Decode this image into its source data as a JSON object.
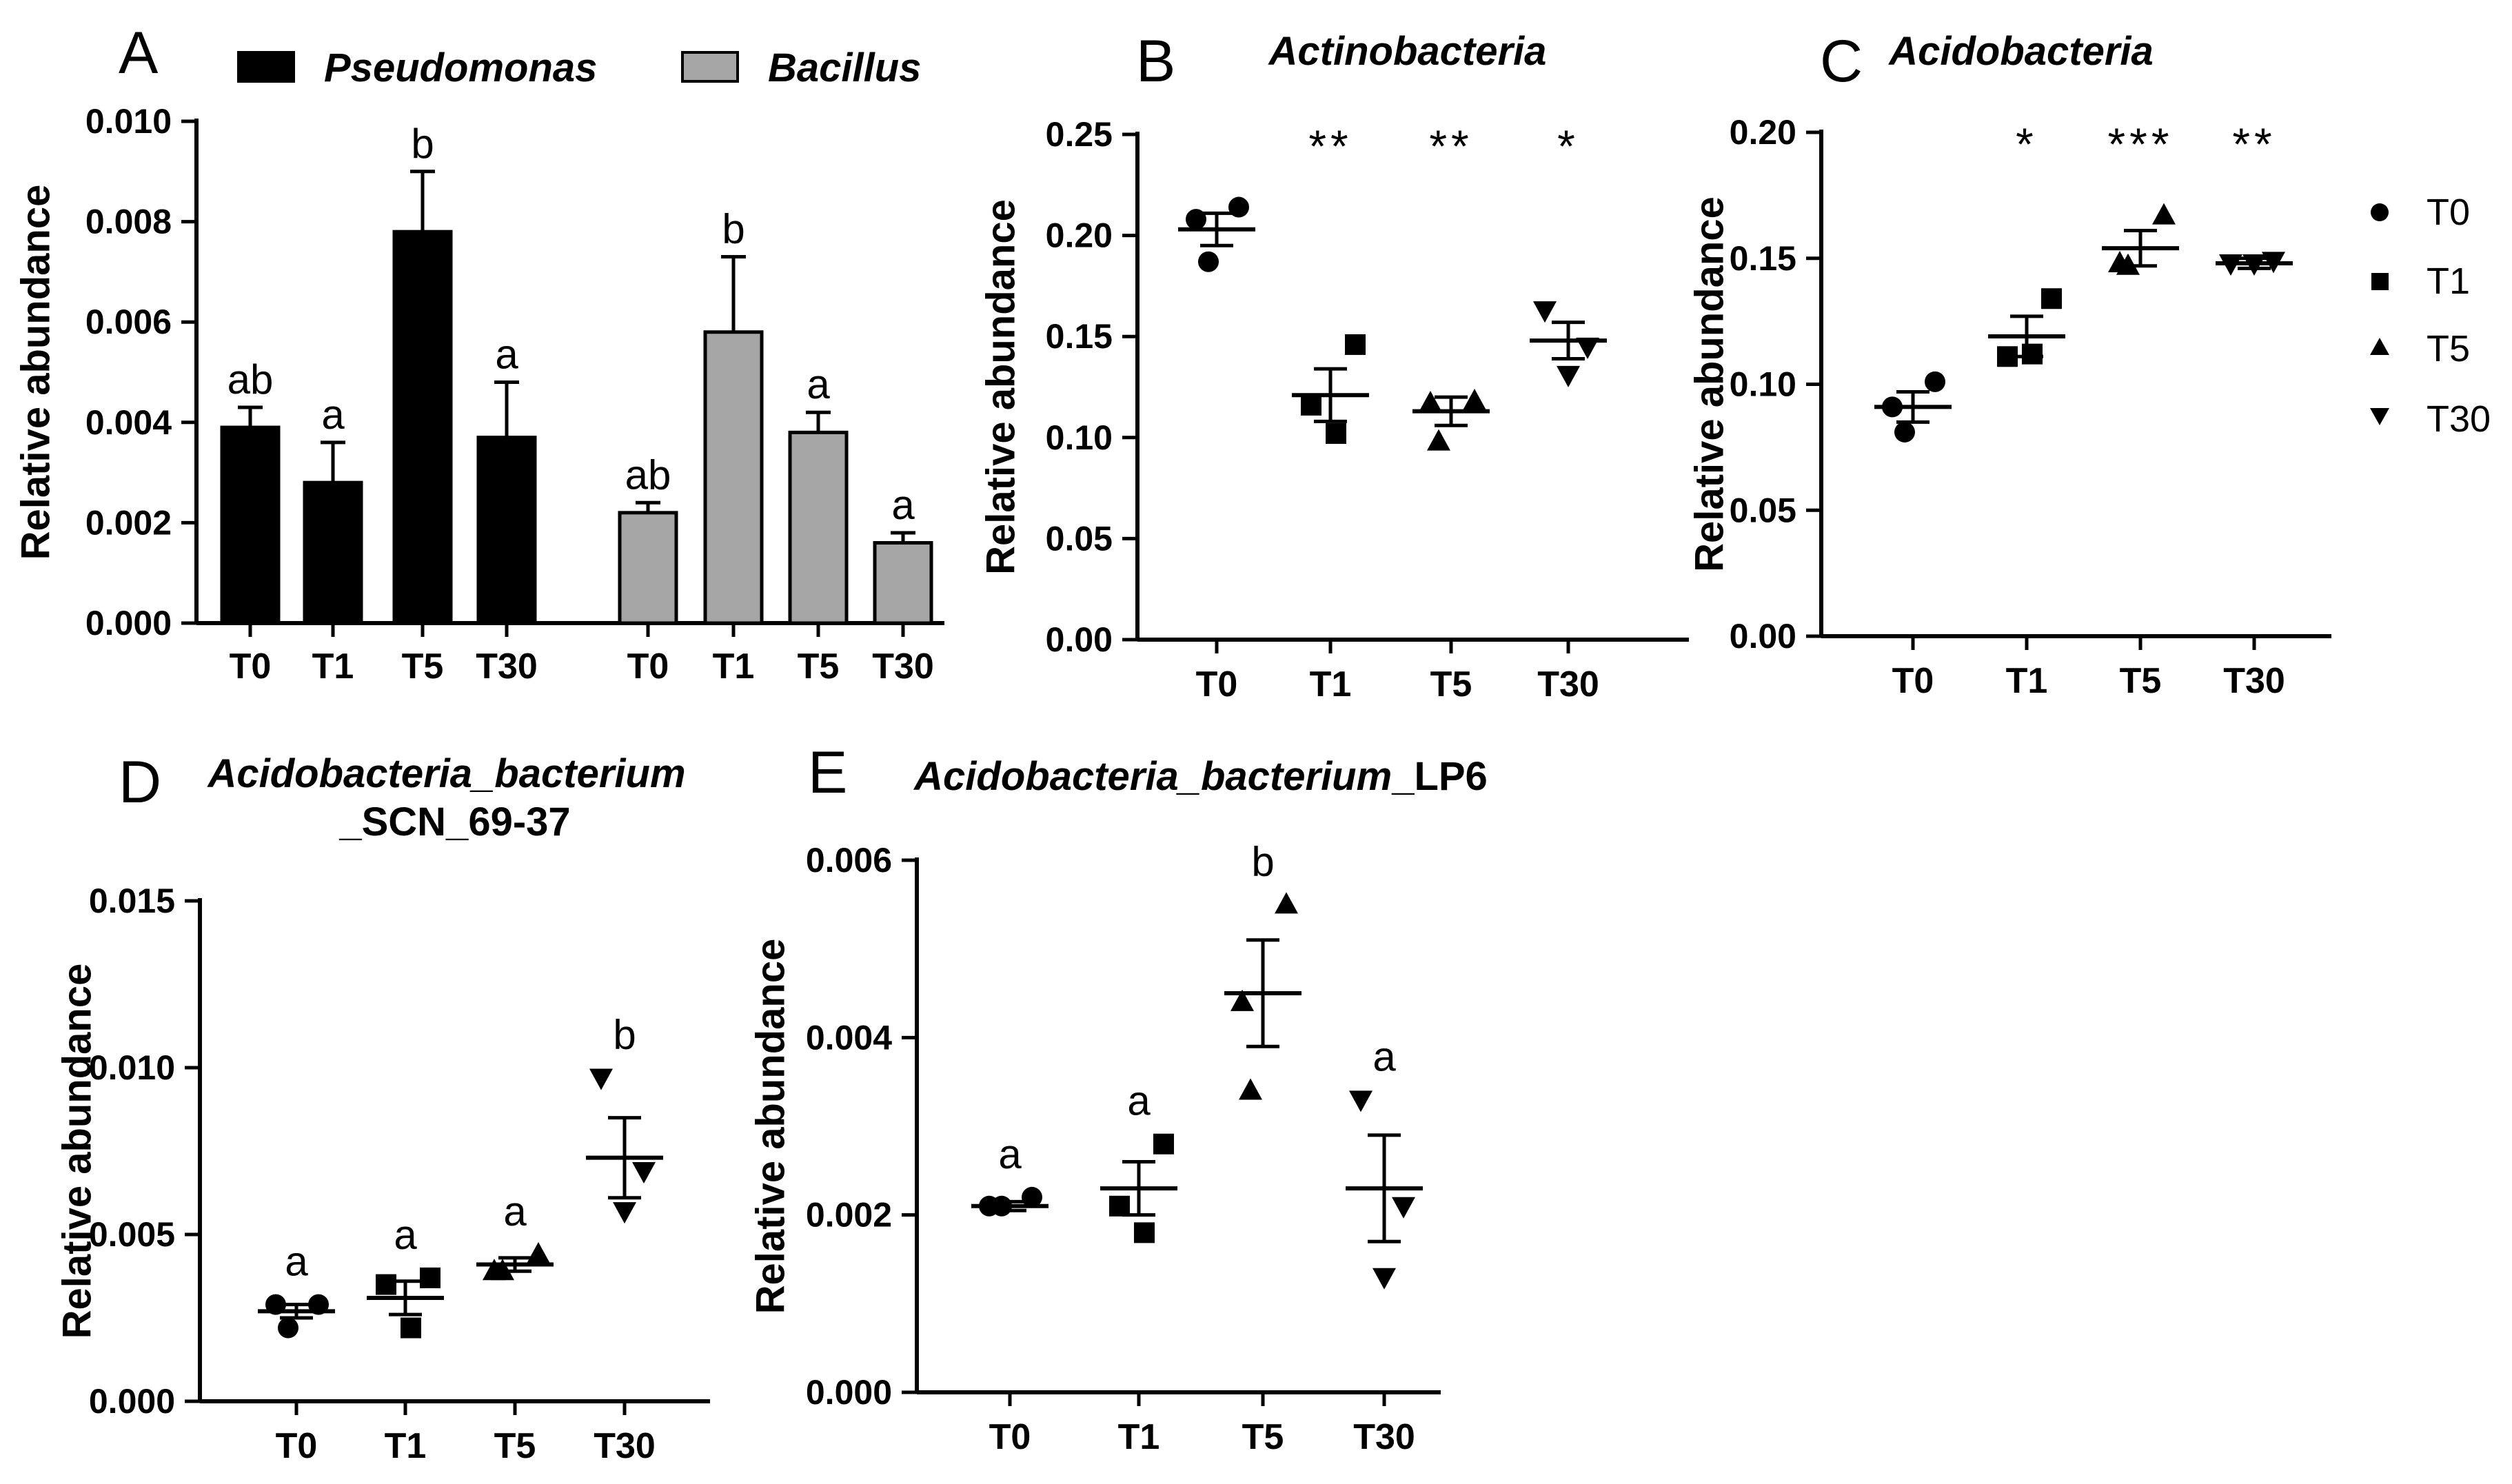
{
  "chart_data": [
    {
      "panel": "A",
      "type": "bar",
      "title": "",
      "ylabel": "Relative abundance",
      "ylim": [
        0,
        0.01
      ],
      "yticks": [
        "0.000",
        "0.002",
        "0.004",
        "0.006",
        "0.008",
        "0.010"
      ],
      "categories": [
        "T0",
        "T1",
        "T5",
        "T30"
      ],
      "legend_position": "top",
      "series": [
        {
          "name": "Pseudomonas",
          "color": "#000000",
          "values": [
            0.0039,
            0.0028,
            0.0078,
            0.0037
          ],
          "errors": [
            0.0004,
            0.0008,
            0.0012,
            0.0011
          ],
          "labels": [
            "ab",
            "a",
            "b",
            "a"
          ]
        },
        {
          "name": "Bacillus",
          "color": "#a6a6a6",
          "values": [
            0.0022,
            0.0058,
            0.0038,
            0.0016
          ],
          "errors": [
            0.0002,
            0.0015,
            0.0004,
            0.0002
          ],
          "labels": [
            "ab",
            "b",
            "a",
            "a"
          ]
        }
      ]
    },
    {
      "panel": "B",
      "type": "scatter",
      "title": "Actinobacteria",
      "ylabel": "Relative abundance",
      "ylim": [
        0,
        0.25
      ],
      "yticks": [
        "0.00",
        "0.05",
        "0.10",
        "0.15",
        "0.20",
        "0.25"
      ],
      "categories": [
        "T0",
        "T1",
        "T5",
        "T30"
      ],
      "groups": [
        {
          "points": [
            0.214,
            0.208,
            0.187
          ],
          "mean": 0.203,
          "sem": 0.008,
          "annotation": ""
        },
        {
          "points": [
            0.146,
            0.116,
            0.102
          ],
          "mean": 0.121,
          "sem": 0.013,
          "annotation": "**"
        },
        {
          "points": [
            0.118,
            0.117,
            0.098
          ],
          "mean": 0.113,
          "sem": 0.007,
          "annotation": "**"
        },
        {
          "points": [
            0.163,
            0.145,
            0.131
          ],
          "mean": 0.148,
          "sem": 0.009,
          "annotation": "*"
        }
      ]
    },
    {
      "panel": "C",
      "type": "scatter",
      "title": "Acidobacteria",
      "ylabel": "Relative abundance",
      "ylim": [
        0,
        0.2
      ],
      "yticks": [
        "0.00",
        "0.05",
        "0.10",
        "0.15",
        "0.20"
      ],
      "categories": [
        "T0",
        "T1",
        "T5",
        "T30"
      ],
      "legend": [
        "T0",
        "T1",
        "T5",
        "T30"
      ],
      "legend_position": "right",
      "groups": [
        {
          "points": [
            0.101,
            0.091,
            0.081
          ],
          "mean": 0.091,
          "sem": 0.006,
          "annotation": ""
        },
        {
          "points": [
            0.134,
            0.111,
            0.112
          ],
          "mean": 0.119,
          "sem": 0.008,
          "annotation": "*"
        },
        {
          "points": [
            0.167,
            0.148,
            0.147
          ],
          "mean": 0.154,
          "sem": 0.007,
          "annotation": "***"
        },
        {
          "points": [
            0.148,
            0.149,
            0.148
          ],
          "mean": 0.148,
          "sem": 0.002,
          "annotation": "**"
        }
      ]
    },
    {
      "panel": "D",
      "type": "scatter",
      "title": "Acidobacteria_bacterium",
      "title_line2": "_SCN_69-37",
      "ylabel": "Relative abundance",
      "ylim": [
        0,
        0.015
      ],
      "yticks": [
        "0.000",
        "0.005",
        "0.010",
        "0.015"
      ],
      "categories": [
        "T0",
        "T1",
        "T5",
        "T30"
      ],
      "groups": [
        {
          "points": [
            0.0029,
            0.0029,
            0.0022
          ],
          "mean": 0.0027,
          "sem": 0.0002,
          "annotation": "a"
        },
        {
          "points": [
            0.0037,
            0.0035,
            0.0022
          ],
          "mean": 0.0031,
          "sem": 0.0005,
          "annotation": "a"
        },
        {
          "points": [
            0.0044,
            0.0039,
            0.0039
          ],
          "mean": 0.0041,
          "sem": 0.0002,
          "annotation": "a"
        },
        {
          "points": [
            0.0097,
            0.0069,
            0.0057
          ],
          "mean": 0.0073,
          "sem": 0.0012,
          "annotation": "b"
        }
      ]
    },
    {
      "panel": "E",
      "type": "scatter",
      "title": "Acidobacteria_bacterium",
      "title_suffix": "_LP6",
      "ylabel": "Relative abundance",
      "ylim": [
        0,
        0.006
      ],
      "yticks": [
        "0.000",
        "0.002",
        "0.004",
        "0.006"
      ],
      "categories": [
        "T0",
        "T1",
        "T5",
        "T30"
      ],
      "groups": [
        {
          "points": [
            0.0022,
            0.0021,
            0.0021
          ],
          "mean": 0.0021,
          "sem": 5e-05,
          "annotation": "a"
        },
        {
          "points": [
            0.0028,
            0.0021,
            0.0018
          ],
          "mean": 0.0023,
          "sem": 0.0003,
          "annotation": "a"
        },
        {
          "points": [
            0.0055,
            0.0044,
            0.0034
          ],
          "mean": 0.0045,
          "sem": 0.0006,
          "annotation": "b"
        },
        {
          "points": [
            0.0033,
            0.0021,
            0.0013
          ],
          "mean": 0.0023,
          "sem": 0.0006,
          "annotation": "a"
        }
      ]
    }
  ],
  "panel_letters": [
    "A",
    "B",
    "C",
    "D",
    "E"
  ],
  "marker_icons": [
    "circle-icon",
    "square-icon",
    "triangle-up-icon",
    "triangle-down-icon"
  ]
}
